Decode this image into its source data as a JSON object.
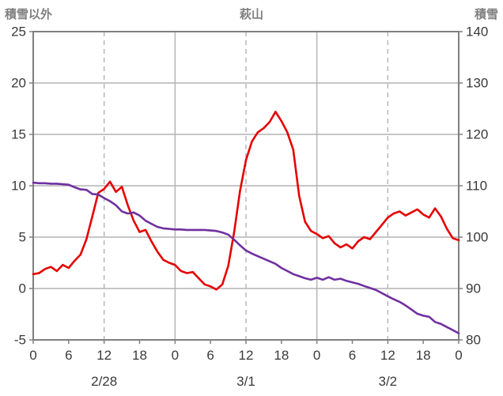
{
  "header": {
    "title": "萩山",
    "left_axis_label": "積雪以外",
    "right_axis_label": "積雪"
  },
  "colors": {
    "temperature_line": "#e60000",
    "snow_line": "#7030a0",
    "grid": "#b3b3b3",
    "frame": "#7f7f7f",
    "tick_text": "#3a3a3a",
    "header_text": "#7f7f7f"
  },
  "chart_data": {
    "type": "line",
    "title": "萩山",
    "left_axis": {
      "label": "積雪以外",
      "range": [
        -5,
        25
      ],
      "ticks": [
        25,
        20,
        15,
        10,
        5,
        0,
        -5
      ]
    },
    "right_axis": {
      "label": "積雪",
      "range": [
        80,
        140
      ],
      "ticks": [
        140,
        130,
        120,
        110,
        100,
        90,
        80
      ]
    },
    "x_axis": {
      "range_hours": [
        0,
        72
      ],
      "tick_hours": [
        0,
        6,
        12,
        18,
        24,
        30,
        36,
        42,
        48,
        54,
        60,
        66,
        72
      ],
      "tick_labels": [
        "0",
        "6",
        "12",
        "18",
        "0",
        "6",
        "12",
        "18",
        "0",
        "6",
        "12",
        "18",
        "0"
      ],
      "day_labels": [
        {
          "label": "2/28",
          "hour": 12
        },
        {
          "label": "3/1",
          "hour": 36
        },
        {
          "label": "3/2",
          "hour": 60
        }
      ]
    },
    "gridlines": {
      "horizontal_left_values": [
        20,
        15,
        10,
        5,
        0
      ],
      "vertical": [
        {
          "hour": 12,
          "dashed": true
        },
        {
          "hour": 24,
          "dashed": false
        },
        {
          "hour": 36,
          "dashed": true
        },
        {
          "hour": 48,
          "dashed": false
        },
        {
          "hour": 60,
          "dashed": true
        }
      ]
    },
    "series": [
      {
        "name": "積雪以外",
        "axis": "left",
        "color": "#e60000",
        "values": [
          1.4,
          1.5,
          1.9,
          2.1,
          1.7,
          2.3,
          2.0,
          2.7,
          3.3,
          4.8,
          7.0,
          9.3,
          9.7,
          10.4,
          9.4,
          9.9,
          8.1,
          6.6,
          5.5,
          5.7,
          4.6,
          3.6,
          2.8,
          2.5,
          2.3,
          1.7,
          1.5,
          1.6,
          1.0,
          0.4,
          0.2,
          -0.1,
          0.4,
          2.2,
          5.5,
          9.5,
          12.5,
          14.3,
          15.2,
          15.6,
          16.2,
          17.2,
          16.3,
          15.2,
          13.5,
          9.0,
          6.5,
          5.6,
          5.3,
          4.9,
          5.1,
          4.4,
          4.0,
          4.3,
          3.9,
          4.6,
          5.0,
          4.8,
          5.5,
          6.2,
          6.9,
          7.3,
          7.5,
          7.1,
          7.4,
          7.7,
          7.2,
          6.9,
          7.8,
          7.0,
          5.8,
          4.9,
          4.7
        ]
      },
      {
        "name": "積雪",
        "axis": "right",
        "color": "#7030a0",
        "values": [
          110.6,
          110.5,
          110.5,
          110.4,
          110.4,
          110.3,
          110.2,
          109.7,
          109.3,
          109.2,
          108.4,
          108.3,
          107.6,
          107.0,
          106.2,
          105.0,
          104.6,
          104.8,
          104.2,
          103.2,
          102.6,
          102.0,
          101.7,
          101.6,
          101.5,
          101.5,
          101.4,
          101.4,
          101.4,
          101.4,
          101.3,
          101.2,
          100.9,
          100.5,
          99.5,
          98.4,
          97.4,
          96.8,
          96.3,
          95.8,
          95.3,
          94.8,
          94.0,
          93.4,
          92.8,
          92.4,
          92.0,
          91.7,
          92.1,
          91.7,
          92.2,
          91.7,
          91.9,
          91.5,
          91.2,
          90.9,
          90.5,
          90.1,
          89.7,
          89.1,
          88.5,
          87.9,
          87.4,
          86.7,
          85.9,
          85.1,
          84.7,
          84.5,
          83.5,
          83.1,
          82.5,
          81.9,
          81.3
        ]
      }
    ]
  }
}
